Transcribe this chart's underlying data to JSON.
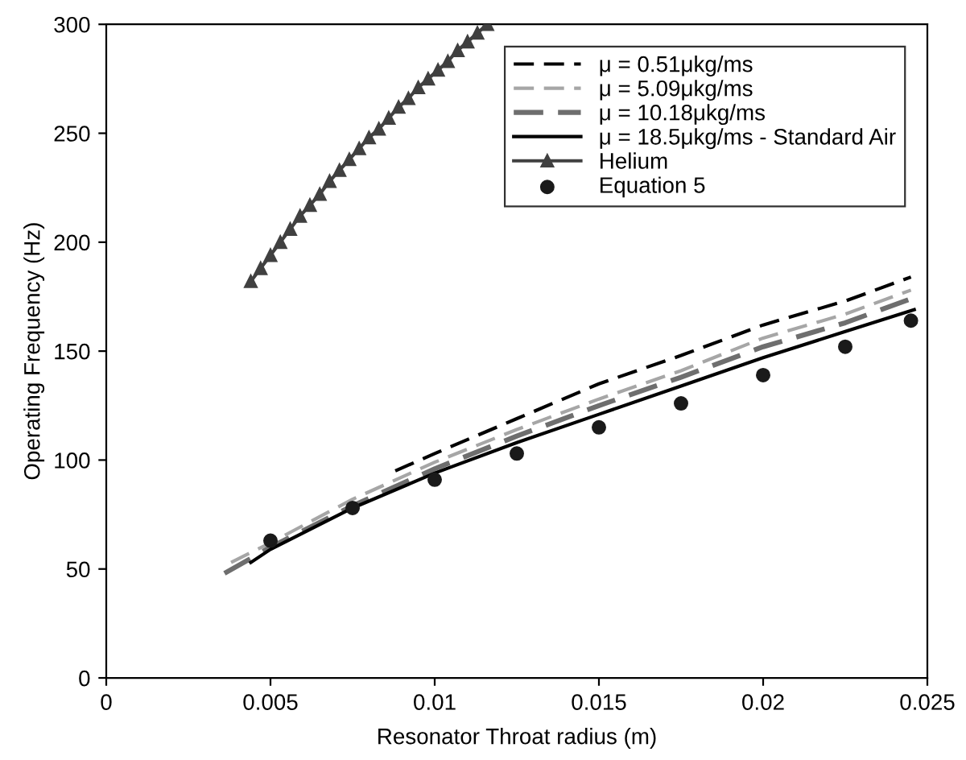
{
  "chart_data": {
    "type": "line",
    "xlabel": "Resonator Throat radius (m)",
    "ylabel": "Operating Frequency (Hz)",
    "xlim": [
      0,
      0.025
    ],
    "xticks": [
      0,
      0.005,
      0.01,
      0.015,
      0.02,
      0.025
    ],
    "ylim": [
      0,
      300
    ],
    "yticks": [
      0,
      50,
      100,
      150,
      200,
      250,
      300
    ],
    "grid": false,
    "legend": "top right",
    "series": [
      {
        "name": "μ = 0.51μkg/ms",
        "color": "#000000",
        "line_style": "dashed",
        "marker": "none",
        "x": [
          0.0088,
          0.01,
          0.0125,
          0.015,
          0.0175,
          0.02,
          0.0225,
          0.0245
        ],
        "values": [
          95,
          103,
          119,
          135,
          148,
          162,
          173,
          184
        ]
      },
      {
        "name": "μ = 5.09μkg/ms",
        "color": "#a6a6a6",
        "line_style": "dashed",
        "marker": "none",
        "x": [
          0.0038,
          0.005,
          0.0075,
          0.01,
          0.0125,
          0.015,
          0.0175,
          0.02,
          0.0225,
          0.0245
        ],
        "values": [
          53,
          62,
          82,
          99,
          114,
          128,
          141,
          156,
          167,
          178
        ]
      },
      {
        "name": "μ = 10.18μkg/ms",
        "color": "#6e6e6e",
        "line_style": "dashed",
        "marker": "none",
        "x": [
          0.0036,
          0.005,
          0.0075,
          0.01,
          0.0125,
          0.015,
          0.0175,
          0.02,
          0.0225,
          0.0245
        ],
        "values": [
          48,
          60,
          79,
          96,
          111,
          125,
          138,
          152,
          163,
          174
        ]
      },
      {
        "name": "μ = 18.5μkg/ms - Standard Air",
        "color": "#000000",
        "line_style": "solid",
        "marker": "none",
        "x": [
          0.0044,
          0.005,
          0.0075,
          0.01,
          0.0125,
          0.015,
          0.0175,
          0.02,
          0.0225,
          0.0246
        ],
        "values": [
          53,
          59,
          78,
          94,
          108,
          121,
          134,
          147,
          159,
          169
        ]
      },
      {
        "name": "Helium",
        "color": "#404040",
        "line_style": "solid",
        "marker": "triangle",
        "x": [
          0.0044,
          0.0047,
          0.005,
          0.0053,
          0.0056,
          0.0059,
          0.0062,
          0.0065,
          0.0068,
          0.0071,
          0.0074,
          0.0077,
          0.008,
          0.0083,
          0.0086,
          0.0089,
          0.0092,
          0.0095,
          0.0098,
          0.0101,
          0.0104,
          0.0107,
          0.011,
          0.0113,
          0.0116
        ],
        "values": [
          182,
          188,
          194,
          200,
          206,
          212,
          217,
          222,
          228,
          233,
          238,
          243,
          248,
          252,
          257,
          262,
          266,
          271,
          275,
          279,
          283,
          288,
          292,
          296,
          300
        ]
      },
      {
        "name": "Equation 5",
        "type": "scatter",
        "color": "#1a1a1a",
        "marker": "circle",
        "x": [
          0.005,
          0.0075,
          0.01,
          0.0125,
          0.015,
          0.0175,
          0.02,
          0.0225,
          0.0245
        ],
        "values": [
          63,
          78,
          91,
          103,
          115,
          126,
          139,
          152,
          164
        ]
      }
    ]
  }
}
